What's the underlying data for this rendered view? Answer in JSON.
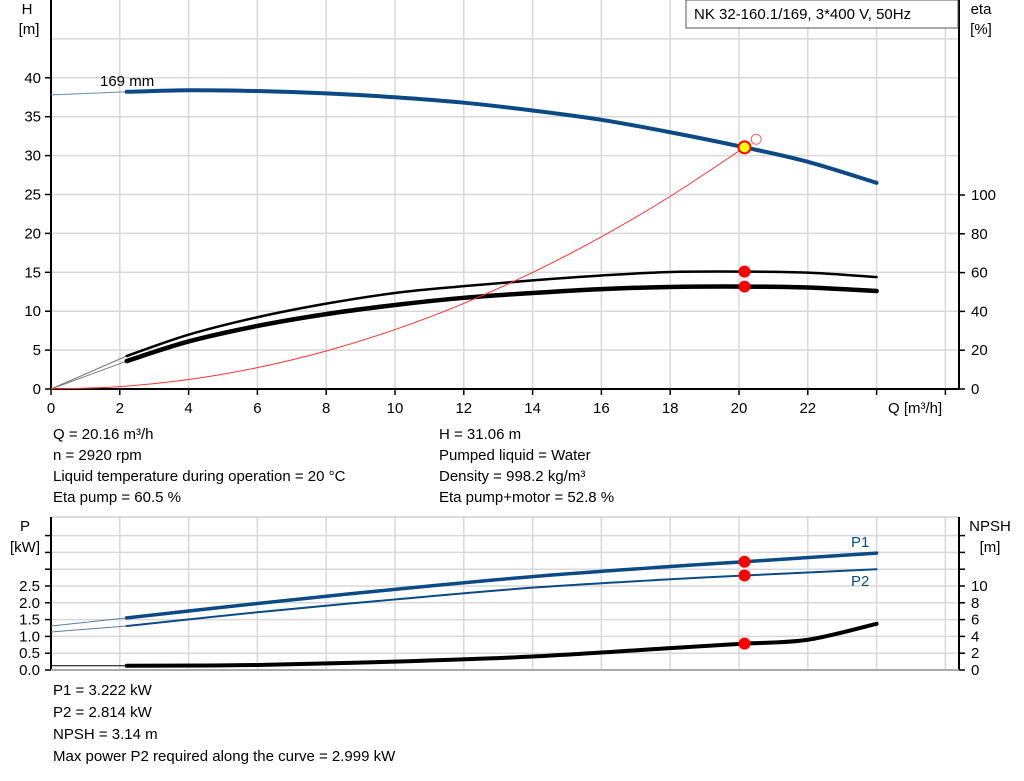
{
  "chart_data": [
    {
      "type": "line",
      "title": "NK 32-160.1/169, 3*400 V, 50Hz",
      "xlabel": "Q [m³/h]",
      "ylabel": "H\n[m]",
      "ylabel_lines": [
        "H",
        "[m]"
      ],
      "y2label_lines": [
        "eta",
        "[%]"
      ],
      "xlim": [
        0,
        26.5
      ],
      "ylim": [
        0,
        50
      ],
      "y2lim": [
        0,
        200
      ],
      "xticks": [
        0,
        2,
        4,
        6,
        8,
        10,
        12,
        14,
        16,
        18,
        20,
        22
      ],
      "yticks": [
        0,
        5,
        10,
        15,
        20,
        25,
        30,
        35,
        40
      ],
      "y2ticks": [
        0,
        20,
        40,
        60,
        80,
        100
      ],
      "grid": true,
      "colors": {
        "head": "#0c4a85",
        "eta": "#000000",
        "system": "#ff3030",
        "point": "#ff0000",
        "duty_fill": "#ffff00"
      },
      "curve_label": "169 mm",
      "series": [
        {
          "id": "head",
          "axis": "H",
          "x": [
            0,
            2.2,
            4,
            6,
            8,
            10,
            12,
            14,
            16,
            18,
            20.16,
            22,
            24
          ],
          "values": [
            37.8,
            38.2,
            38.4,
            38.3,
            38,
            37.5,
            36.8,
            35.8,
            34.6,
            33,
            31.06,
            29.2,
            26.5
          ],
          "extrapolated_below": 2.2
        },
        {
          "id": "eta-pump",
          "axis": "eta",
          "x": [
            0,
            2.2,
            4,
            6,
            8,
            10,
            12,
            14,
            16,
            18,
            20.16,
            22,
            24
          ],
          "values": [
            0,
            17,
            28,
            37,
            44,
            49.5,
            53,
            56,
            58.5,
            60.3,
            60.5,
            60,
            57.7
          ],
          "extrapolated_below": 2.2
        },
        {
          "id": "eta-pump-motor",
          "axis": "eta",
          "x": [
            0,
            2.2,
            4,
            6,
            8,
            10,
            12,
            14,
            16,
            18,
            20.16,
            22,
            24
          ],
          "values": [
            0,
            14.4,
            24.5,
            32.5,
            38.6,
            43.3,
            47,
            49.5,
            51.5,
            52.6,
            52.8,
            52.3,
            50.5
          ],
          "extrapolated_below": 2.2
        },
        {
          "id": "system",
          "axis": "H",
          "x": [
            0,
            2,
            4,
            6,
            8,
            10,
            12,
            14,
            16,
            18,
            20.16
          ],
          "values": [
            0,
            0.31,
            1.22,
            2.75,
            4.89,
            7.64,
            11.0,
            14.98,
            19.56,
            24.76,
            31.06
          ]
        }
      ],
      "points": [
        {
          "id": "duty-point",
          "x": 20.16,
          "y": 31.06,
          "axis": "H"
        },
        {
          "id": "eta-pump-point",
          "x": 20.16,
          "y": 60.5,
          "axis": "eta"
        },
        {
          "id": "eta-pump-motor-point",
          "x": 20.16,
          "y": 52.8,
          "axis": "eta"
        },
        {
          "id": "requested-point",
          "x": 20.5,
          "y": 32.1,
          "axis": "H"
        }
      ]
    },
    {
      "type": "line",
      "ylabel_lines": [
        "P",
        "[kW]"
      ],
      "y2label_lines": [
        "NPSH",
        "[m]"
      ],
      "xlim": [
        0,
        26.5
      ],
      "ylim": [
        0,
        4.5
      ],
      "y2lim": [
        0,
        18
      ],
      "yticks": [
        0.0,
        0.5,
        1.0,
        1.5,
        2.0,
        2.5,
        3.0,
        3.5,
        4.0
      ],
      "ytick_labels": [
        "0.0",
        "0.5",
        "1.0",
        "1.5",
        "2.0",
        "2.5",
        "",
        "",
        ""
      ],
      "y2ticks": [
        0,
        2,
        4,
        6,
        8,
        10,
        12,
        14,
        16
      ],
      "y2tick_labels": [
        "0",
        "2",
        "4",
        "6",
        "8",
        "10",
        "",
        "",
        ""
      ],
      "grid": true,
      "series": [
        {
          "id": "p1",
          "name": "P1",
          "axis": "P",
          "color": "#0c4a85",
          "x": [
            0,
            2.2,
            6,
            10,
            14,
            18,
            20.16,
            24
          ],
          "values": [
            1.31,
            1.55,
            1.98,
            2.4,
            2.78,
            3.08,
            3.222,
            3.48
          ],
          "extrapolated_below": 2.2
        },
        {
          "id": "p2",
          "name": "P2",
          "axis": "P",
          "color": "#0c4a85",
          "x": [
            0,
            2.2,
            6,
            10,
            14,
            18,
            20.16,
            24
          ],
          "values": [
            1.13,
            1.31,
            1.72,
            2.1,
            2.45,
            2.7,
            2.814,
            3.0
          ],
          "extrapolated_below": 2.2
        },
        {
          "id": "npsh",
          "axis": "NPSH",
          "color": "#000000",
          "x": [
            0,
            2.2,
            6,
            10,
            14,
            18,
            20.16,
            22,
            24
          ],
          "values": [
            0.5,
            0.5,
            0.6,
            1.0,
            1.6,
            2.6,
            3.14,
            3.6,
            5.5
          ],
          "extrapolated_below": 2.2
        }
      ],
      "points": [
        {
          "id": "p1-point",
          "x": 20.16,
          "y": 3.222,
          "axis": "P"
        },
        {
          "id": "p2-point",
          "x": 20.16,
          "y": 2.814,
          "axis": "P"
        },
        {
          "id": "npsh-point",
          "x": 20.16,
          "y": 3.14,
          "axis": "NPSH"
        }
      ]
    }
  ],
  "info_top": {
    "left": [
      "Q = 20.16 m³/h",
      "n = 2920 rpm",
      "Liquid temperature during operation = 20 °C",
      "Eta pump = 60.5 %"
    ],
    "right": [
      "H = 31.06 m",
      "Pumped liquid = Water",
      "Density = 998.2 kg/m³",
      "Eta pump+motor = 52.8 %"
    ]
  },
  "info_bottom": [
    "P1 = 3.222 kW",
    "P2 = 2.814 kW",
    "NPSH = 3.14 m",
    "Max power P2 required along the curve = 2.999 kW"
  ]
}
